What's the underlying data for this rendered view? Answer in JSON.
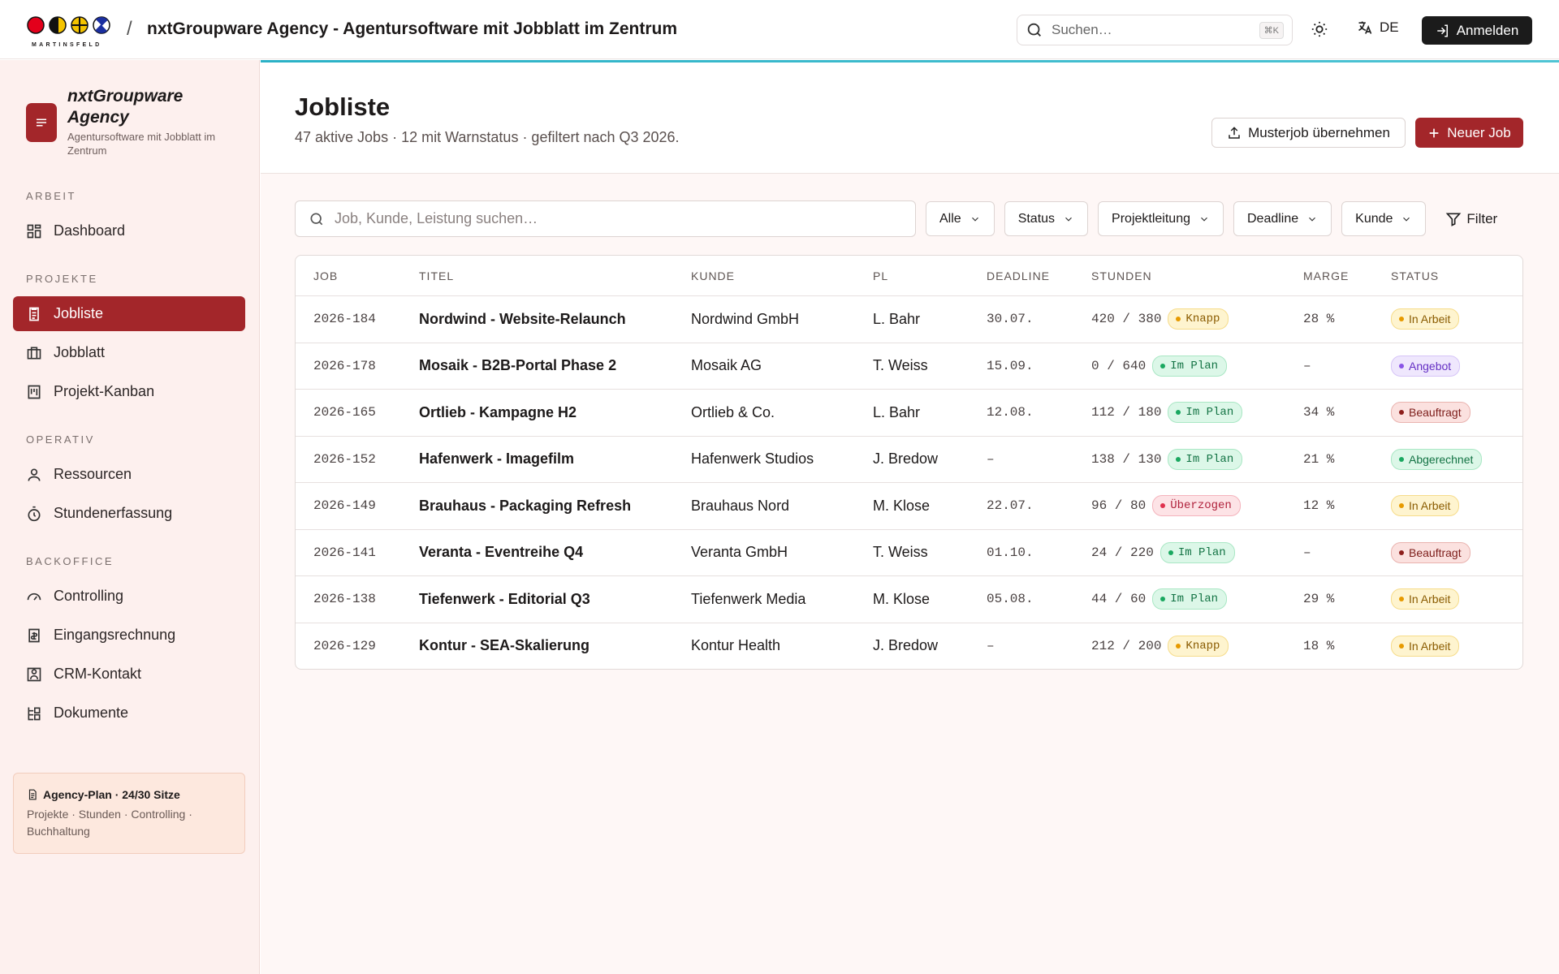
{
  "header": {
    "logo_text": "MARTINSFELD",
    "separator": "/",
    "title": "nxtGroupware Agency - Agentursoftware mit Jobblatt im Zentrum",
    "search_placeholder": "Suchen…",
    "search_shortcut": "⌘K",
    "language": "DE",
    "login": "Anmelden"
  },
  "sidebar": {
    "app_name": "nxtGroupware Agency",
    "app_tagline": "Agentursoftware mit Jobblatt im Zentrum",
    "sections": [
      {
        "label": "ARBEIT",
        "items": [
          "Dashboard"
        ]
      },
      {
        "label": "PROJEKTE",
        "items": [
          "Jobliste",
          "Jobblatt",
          "Projekt-Kanban"
        ]
      },
      {
        "label": "OPERATIV",
        "items": [
          "Ressourcen",
          "Stundenerfassung"
        ]
      },
      {
        "label": "BACKOFFICE",
        "items": [
          "Controlling",
          "Eingangsrechnung",
          "CRM-Kontakt",
          "Dokumente"
        ]
      }
    ],
    "active_item": "Jobliste",
    "plan": {
      "title": "Agency-Plan · 24/30 Sitze",
      "features": "Projekte · Stunden · Controlling · Buchhaltung"
    }
  },
  "page": {
    "title": "Jobliste",
    "subtitle": "47 aktive Jobs · 12 mit Warnstatus · gefiltert nach Q3 2026.",
    "secondary_action": "Musterjob übernehmen",
    "primary_action": "Neuer Job"
  },
  "toolbar": {
    "search_placeholder": "Job, Kunde, Leistung suchen…",
    "filters": [
      "Alle",
      "Status",
      "Projektleitung",
      "Deadline",
      "Kunde"
    ],
    "filter_button": "Filter"
  },
  "table": {
    "columns": [
      "JOB",
      "TITEL",
      "KUNDE",
      "PL",
      "DEADLINE",
      "STUNDEN",
      "MARGE",
      "STATUS"
    ],
    "rows": [
      {
        "job": "2026-184",
        "title": "Nordwind - Website-Relaunch",
        "customer": "Nordwind GmbH",
        "pl": "L. Bahr",
        "deadline": "30.07.",
        "hours": "420 / 380",
        "budget": "Knapp",
        "budget_color": "amber",
        "margin": "28 %",
        "status": "In Arbeit",
        "status_color": "amber"
      },
      {
        "job": "2026-178",
        "title": "Mosaik - B2B-Portal Phase 2",
        "customer": "Mosaik AG",
        "pl": "T. Weiss",
        "deadline": "15.09.",
        "hours": "0 / 640",
        "budget": "Im Plan",
        "budget_color": "green",
        "margin": "–",
        "status": "Angebot",
        "status_color": "purple"
      },
      {
        "job": "2026-165",
        "title": "Ortlieb - Kampagne H2",
        "customer": "Ortlieb & Co.",
        "pl": "L. Bahr",
        "deadline": "12.08.",
        "hours": "112 / 180",
        "budget": "Im Plan",
        "budget_color": "green",
        "margin": "34 %",
        "status": "Beauftragt",
        "status_color": "red"
      },
      {
        "job": "2026-152",
        "title": "Hafenwerk - Imagefilm",
        "customer": "Hafenwerk Studios",
        "pl": "J. Bredow",
        "deadline": "–",
        "hours": "138 / 130",
        "budget": "Im Plan",
        "budget_color": "green",
        "margin": "21 %",
        "status": "Abgerechnet",
        "status_color": "green"
      },
      {
        "job": "2026-149",
        "title": "Brauhaus - Packaging Refresh",
        "customer": "Brauhaus Nord",
        "pl": "M. Klose",
        "deadline": "22.07.",
        "hours": "96 / 80",
        "budget": "Überzogen",
        "budget_color": "rose",
        "margin": "12 %",
        "status": "In Arbeit",
        "status_color": "amber"
      },
      {
        "job": "2026-141",
        "title": "Veranta - Eventreihe Q4",
        "customer": "Veranta GmbH",
        "pl": "T. Weiss",
        "deadline": "01.10.",
        "hours": "24 / 220",
        "budget": "Im Plan",
        "budget_color": "green",
        "margin": "–",
        "status": "Beauftragt",
        "status_color": "red"
      },
      {
        "job": "2026-138",
        "title": "Tiefenwerk - Editorial Q3",
        "customer": "Tiefenwerk Media",
        "pl": "M. Klose",
        "deadline": "05.08.",
        "hours": "44 / 60",
        "budget": "Im Plan",
        "budget_color": "green",
        "margin": "29 %",
        "status": "In Arbeit",
        "status_color": "amber"
      },
      {
        "job": "2026-129",
        "title": "Kontur - SEA-Skalierung",
        "customer": "Kontur Health",
        "pl": "J. Bredow",
        "deadline": "–",
        "hours": "212 / 200",
        "budget": "Knapp",
        "budget_color": "amber",
        "margin": "18 %",
        "status": "In Arbeit",
        "status_color": "amber"
      }
    ]
  }
}
